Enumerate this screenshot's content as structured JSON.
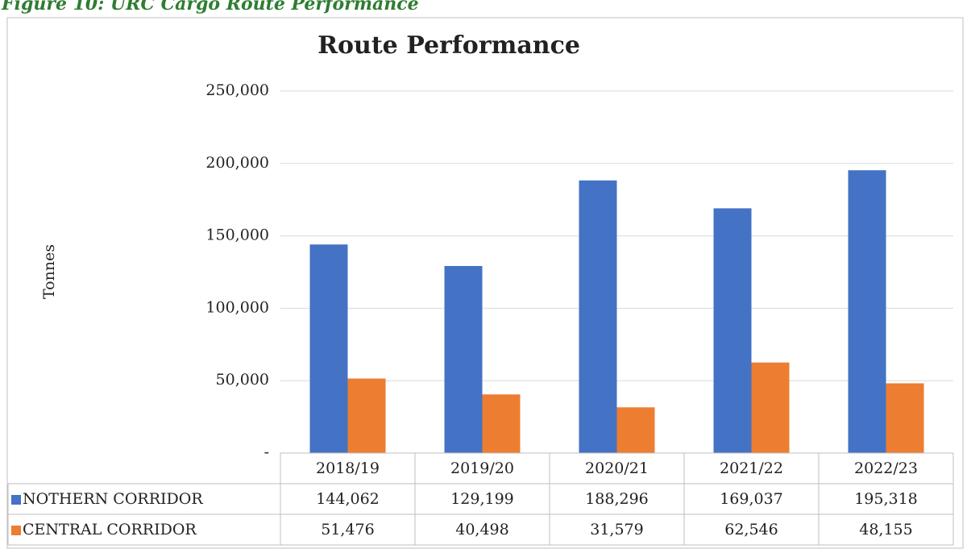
{
  "caption": "Figure 10: URC Cargo Route Performance",
  "chart_data": {
    "type": "bar",
    "title": "Route Performance",
    "y_label": "Tonnes",
    "categories": [
      "2018/19",
      "2019/20",
      "2020/21",
      "2021/22",
      "2022/23"
    ],
    "series": [
      {
        "name": "NOTHERN CORRIDOR",
        "color": "#4472c4",
        "values": [
          144062,
          129199,
          188296,
          169037,
          195318
        ],
        "value_labels": [
          "144,062",
          "129,199",
          "188,296",
          "169,037",
          "195,318"
        ]
      },
      {
        "name": "CENTRAL CORRIDOR",
        "color": "#ed7d31",
        "values": [
          51476,
          40498,
          31579,
          62546,
          48155
        ],
        "value_labels": [
          "51,476",
          "40,498",
          "31,579",
          "62,546",
          "48,155"
        ]
      }
    ],
    "ylim": [
      0,
      250000
    ],
    "yticks": [
      {
        "value": 0,
        "label": "-"
      },
      {
        "value": 50000,
        "label": "50,000"
      },
      {
        "value": 100000,
        "label": "100,000"
      },
      {
        "value": 150000,
        "label": "150,000"
      },
      {
        "value": 200000,
        "label": "200,000"
      },
      {
        "value": 250000,
        "label": "250,000"
      }
    ],
    "grid": true
  }
}
